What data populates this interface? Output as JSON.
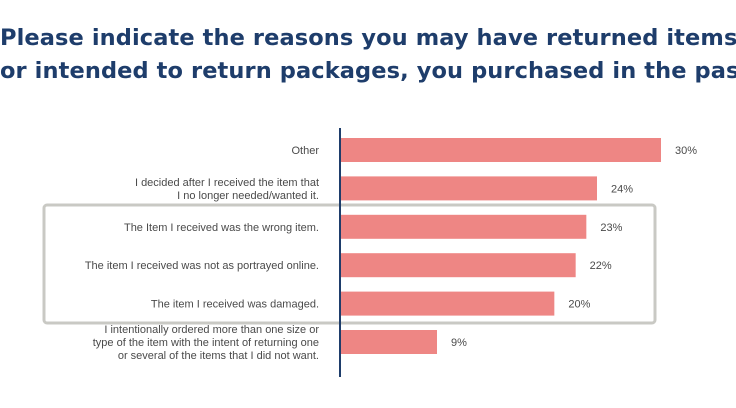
{
  "chart_data": {
    "type": "bar",
    "orientation": "horizontal",
    "title_lines": [
      "Please indicate the reasons you may have returned items,",
      "or intended to return packages, you purchased in the past."
    ],
    "categories": [
      [
        "Other"
      ],
      [
        "I decided after I received the item that",
        "I no longer needed/wanted it."
      ],
      [
        "The Item I received was the wrong item."
      ],
      [
        "The item I received was not as portrayed online."
      ],
      [
        "The item I received was damaged."
      ],
      [
        "I intentionally ordered more than one size or",
        "type of the item with the intent of returning one",
        "or several of the items that I did not want."
      ]
    ],
    "values": [
      30,
      24,
      23,
      22,
      20,
      9
    ],
    "value_labels": [
      "30%",
      "24%",
      "23%",
      "22%",
      "20%",
      "9%"
    ],
    "unit": "%",
    "xlim": [
      0,
      30
    ],
    "highlighted_categories": [
      2,
      3,
      4
    ],
    "colors": {
      "title": "#1e3d6b",
      "bar": "#ee8684",
      "axis": "#1e3d6b",
      "highlight_box": "#c9c9c4",
      "text": "#4a4a4a"
    }
  }
}
